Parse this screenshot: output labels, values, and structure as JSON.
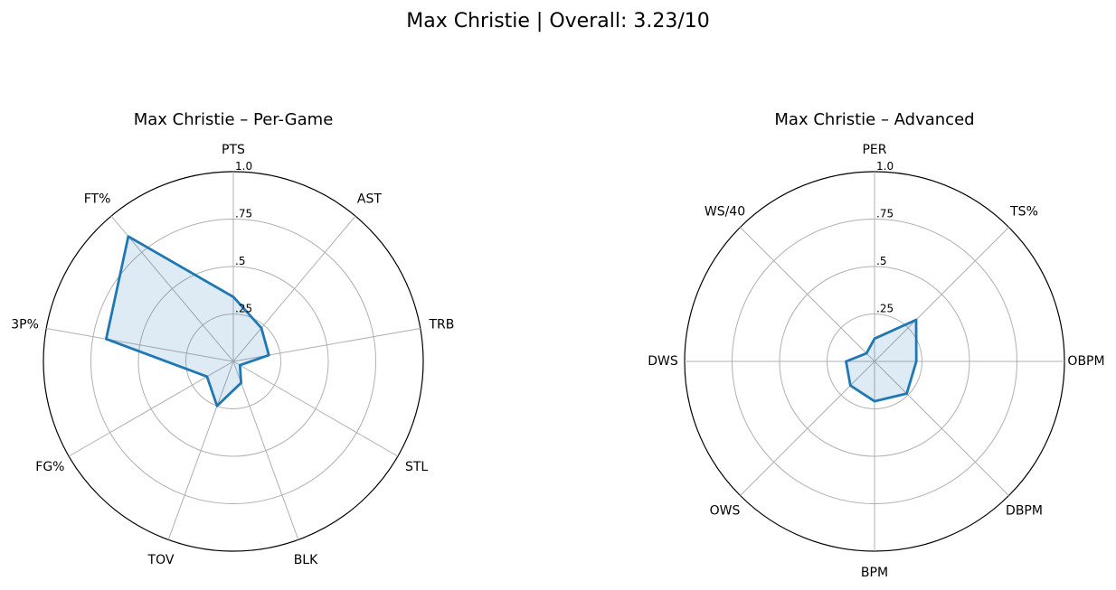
{
  "figure": {
    "title": "Max Christie | Overall: 3.23/10"
  },
  "chart_data": [
    {
      "type": "radar",
      "title": "Max Christie – Per-Game",
      "categories": [
        "PTS",
        "AST",
        "TRB",
        "STL",
        "BLK",
        "TOV",
        "FG%",
        "3P%",
        "FT%"
      ],
      "values": [
        0.34,
        0.23,
        0.19,
        0.04,
        0.12,
        0.25,
        0.16,
        0.68,
        0.86
      ],
      "rlim": [
        0,
        1
      ],
      "rticks": [
        0.25,
        0.5,
        0.75,
        1.0
      ],
      "rtick_labels": [
        ".25",
        ".5",
        ".75",
        "1.0"
      ],
      "grid": true,
      "line_color": "#1f77b4",
      "fill_color": "#1f77b4"
    },
    {
      "type": "radar",
      "title": "Max Christie – Advanced",
      "categories": [
        "PER",
        "TS%",
        "OBPM",
        "DBPM",
        "BPM",
        "OWS",
        "DWS",
        "WS/40"
      ],
      "values": [
        0.12,
        0.31,
        0.22,
        0.24,
        0.21,
        0.18,
        0.15,
        0.06
      ],
      "rlim": [
        0,
        1
      ],
      "rticks": [
        0.25,
        0.5,
        0.75,
        1.0
      ],
      "rtick_labels": [
        ".25",
        ".5",
        ".75",
        "1.0"
      ],
      "grid": true,
      "line_color": "#1f77b4",
      "fill_color": "#1f77b4"
    }
  ]
}
